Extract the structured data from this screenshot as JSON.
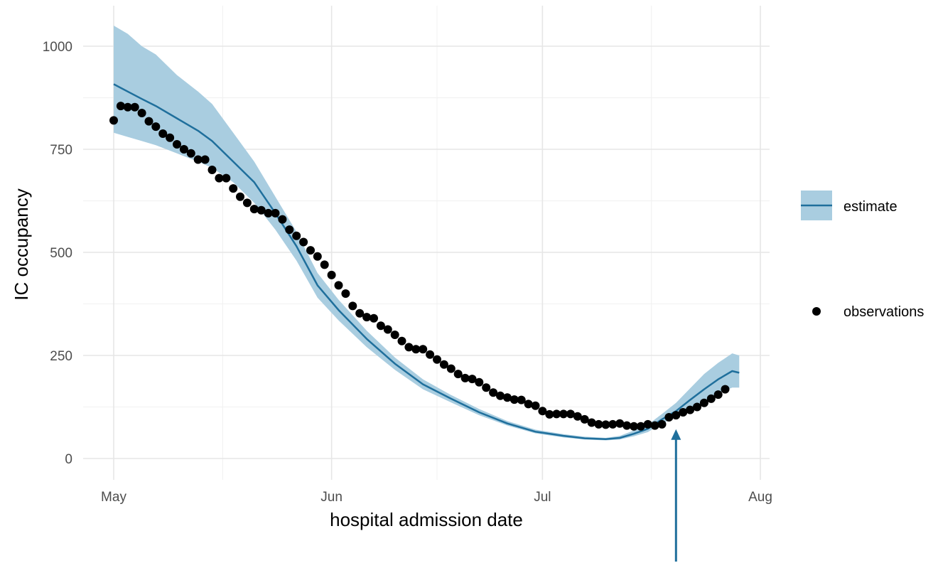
{
  "chart_data": {
    "type": "line",
    "xlabel": "hospital admission date",
    "ylabel": "IC occupancy",
    "x_axis": {
      "type": "date",
      "range": [
        "2020-05-01",
        "2020-08-01"
      ],
      "ticks": [
        {
          "date": "2020-05-01",
          "label": "May"
        },
        {
          "date": "2020-06-01",
          "label": "Jun"
        },
        {
          "date": "2020-07-01",
          "label": "Jul"
        },
        {
          "date": "2020-08-01",
          "label": "Aug"
        }
      ]
    },
    "y_axis": {
      "range": [
        0,
        1000
      ],
      "ticks": [
        0,
        250,
        500,
        750,
        1000
      ]
    },
    "grid": true,
    "legend": {
      "placement": "right",
      "entries": [
        "estimate",
        "observations"
      ]
    },
    "colors": {
      "estimate_line": "#1f6f9c",
      "estimate_band": "#a9cde0",
      "observations": "#000000",
      "annotation_arrow": "#1f6f9c",
      "grid_major": "#e6e6e6",
      "grid_minor": "#f2f2f2"
    },
    "annotation": {
      "type": "arrow",
      "points_to_date": "2020-07-20",
      "points_to_value": 85
    },
    "estimate": [
      {
        "x": "2020-05-01",
        "y": 908,
        "lo": 790,
        "hi": 1050
      },
      {
        "x": "2020-05-03",
        "y": 890,
        "lo": 780,
        "hi": 1030
      },
      {
        "x": "2020-05-05",
        "y": 872,
        "lo": 770,
        "hi": 1000
      },
      {
        "x": "2020-05-07",
        "y": 855,
        "lo": 760,
        "hi": 980
      },
      {
        "x": "2020-05-10",
        "y": 825,
        "lo": 740,
        "hi": 930
      },
      {
        "x": "2020-05-13",
        "y": 795,
        "lo": 720,
        "hi": 890
      },
      {
        "x": "2020-05-15",
        "y": 770,
        "lo": 705,
        "hi": 860
      },
      {
        "x": "2020-05-18",
        "y": 720,
        "lo": 670,
        "hi": 790
      },
      {
        "x": "2020-05-21",
        "y": 670,
        "lo": 620,
        "hi": 720
      },
      {
        "x": "2020-05-24",
        "y": 595,
        "lo": 555,
        "hi": 635
      },
      {
        "x": "2020-05-27",
        "y": 515,
        "lo": 480,
        "hi": 550
      },
      {
        "x": "2020-05-30",
        "y": 420,
        "lo": 390,
        "hi": 450
      },
      {
        "x": "2020-06-02",
        "y": 360,
        "lo": 335,
        "hi": 385
      },
      {
        "x": "2020-06-06",
        "y": 290,
        "lo": 270,
        "hi": 310
      },
      {
        "x": "2020-06-10",
        "y": 230,
        "lo": 215,
        "hi": 245
      },
      {
        "x": "2020-06-14",
        "y": 180,
        "lo": 168,
        "hi": 192
      },
      {
        "x": "2020-06-18",
        "y": 145,
        "lo": 136,
        "hi": 154
      },
      {
        "x": "2020-06-22",
        "y": 112,
        "lo": 105,
        "hi": 120
      },
      {
        "x": "2020-06-26",
        "y": 85,
        "lo": 80,
        "hi": 91
      },
      {
        "x": "2020-06-30",
        "y": 65,
        "lo": 61,
        "hi": 70
      },
      {
        "x": "2020-07-04",
        "y": 55,
        "lo": 51,
        "hi": 59
      },
      {
        "x": "2020-07-07",
        "y": 49,
        "lo": 46,
        "hi": 53
      },
      {
        "x": "2020-07-10",
        "y": 47,
        "lo": 44,
        "hi": 50
      },
      {
        "x": "2020-07-12",
        "y": 50,
        "lo": 46,
        "hi": 55
      },
      {
        "x": "2020-07-14",
        "y": 60,
        "lo": 54,
        "hi": 68
      },
      {
        "x": "2020-07-16",
        "y": 72,
        "lo": 64,
        "hi": 82
      },
      {
        "x": "2020-07-18",
        "y": 95,
        "lo": 85,
        "hi": 108
      },
      {
        "x": "2020-07-20",
        "y": 115,
        "lo": 100,
        "hi": 135
      },
      {
        "x": "2020-07-22",
        "y": 142,
        "lo": 120,
        "hi": 170
      },
      {
        "x": "2020-07-24",
        "y": 168,
        "lo": 140,
        "hi": 205
      },
      {
        "x": "2020-07-26",
        "y": 192,
        "lo": 158,
        "hi": 232
      },
      {
        "x": "2020-07-28",
        "y": 212,
        "lo": 172,
        "hi": 255
      },
      {
        "x": "2020-07-29",
        "y": 208,
        "lo": 172,
        "hi": 250
      }
    ],
    "observations": [
      {
        "x": "2020-05-01",
        "y": 820
      },
      {
        "x": "2020-05-02",
        "y": 855
      },
      {
        "x": "2020-05-03",
        "y": 852
      },
      {
        "x": "2020-05-04",
        "y": 852
      },
      {
        "x": "2020-05-05",
        "y": 838
      },
      {
        "x": "2020-05-06",
        "y": 818
      },
      {
        "x": "2020-05-07",
        "y": 805
      },
      {
        "x": "2020-05-08",
        "y": 788
      },
      {
        "x": "2020-05-09",
        "y": 778
      },
      {
        "x": "2020-05-10",
        "y": 762
      },
      {
        "x": "2020-05-11",
        "y": 750
      },
      {
        "x": "2020-05-12",
        "y": 740
      },
      {
        "x": "2020-05-13",
        "y": 725
      },
      {
        "x": "2020-05-14",
        "y": 725
      },
      {
        "x": "2020-05-15",
        "y": 700
      },
      {
        "x": "2020-05-16",
        "y": 680
      },
      {
        "x": "2020-05-17",
        "y": 680
      },
      {
        "x": "2020-05-18",
        "y": 655
      },
      {
        "x": "2020-05-19",
        "y": 635
      },
      {
        "x": "2020-05-20",
        "y": 620
      },
      {
        "x": "2020-05-21",
        "y": 605
      },
      {
        "x": "2020-05-22",
        "y": 602
      },
      {
        "x": "2020-05-23",
        "y": 595
      },
      {
        "x": "2020-05-24",
        "y": 595
      },
      {
        "x": "2020-05-25",
        "y": 580
      },
      {
        "x": "2020-05-26",
        "y": 555
      },
      {
        "x": "2020-05-27",
        "y": 540
      },
      {
        "x": "2020-05-28",
        "y": 525
      },
      {
        "x": "2020-05-29",
        "y": 505
      },
      {
        "x": "2020-05-30",
        "y": 490
      },
      {
        "x": "2020-05-31",
        "y": 470
      },
      {
        "x": "2020-06-01",
        "y": 445
      },
      {
        "x": "2020-06-02",
        "y": 420
      },
      {
        "x": "2020-06-03",
        "y": 400
      },
      {
        "x": "2020-06-04",
        "y": 370
      },
      {
        "x": "2020-06-05",
        "y": 352
      },
      {
        "x": "2020-06-06",
        "y": 343
      },
      {
        "x": "2020-06-07",
        "y": 340
      },
      {
        "x": "2020-06-08",
        "y": 322
      },
      {
        "x": "2020-06-09",
        "y": 313
      },
      {
        "x": "2020-06-10",
        "y": 300
      },
      {
        "x": "2020-06-11",
        "y": 285
      },
      {
        "x": "2020-06-12",
        "y": 270
      },
      {
        "x": "2020-06-13",
        "y": 265
      },
      {
        "x": "2020-06-14",
        "y": 265
      },
      {
        "x": "2020-06-15",
        "y": 252
      },
      {
        "x": "2020-06-16",
        "y": 240
      },
      {
        "x": "2020-06-17",
        "y": 228
      },
      {
        "x": "2020-06-18",
        "y": 218
      },
      {
        "x": "2020-06-19",
        "y": 205
      },
      {
        "x": "2020-06-20",
        "y": 195
      },
      {
        "x": "2020-06-21",
        "y": 193
      },
      {
        "x": "2020-06-22",
        "y": 185
      },
      {
        "x": "2020-06-23",
        "y": 172
      },
      {
        "x": "2020-06-24",
        "y": 160
      },
      {
        "x": "2020-06-25",
        "y": 152
      },
      {
        "x": "2020-06-26",
        "y": 148
      },
      {
        "x": "2020-06-27",
        "y": 143
      },
      {
        "x": "2020-06-28",
        "y": 142
      },
      {
        "x": "2020-06-29",
        "y": 132
      },
      {
        "x": "2020-06-30",
        "y": 128
      },
      {
        "x": "2020-07-01",
        "y": 115
      },
      {
        "x": "2020-07-02",
        "y": 107
      },
      {
        "x": "2020-07-03",
        "y": 108
      },
      {
        "x": "2020-07-04",
        "y": 108
      },
      {
        "x": "2020-07-05",
        "y": 108
      },
      {
        "x": "2020-07-06",
        "y": 102
      },
      {
        "x": "2020-07-07",
        "y": 95
      },
      {
        "x": "2020-07-08",
        "y": 87
      },
      {
        "x": "2020-07-09",
        "y": 83
      },
      {
        "x": "2020-07-10",
        "y": 82
      },
      {
        "x": "2020-07-11",
        "y": 83
      },
      {
        "x": "2020-07-12",
        "y": 85
      },
      {
        "x": "2020-07-13",
        "y": 80
      },
      {
        "x": "2020-07-14",
        "y": 78
      },
      {
        "x": "2020-07-15",
        "y": 78
      },
      {
        "x": "2020-07-16",
        "y": 83
      },
      {
        "x": "2020-07-17",
        "y": 80
      },
      {
        "x": "2020-07-18",
        "y": 83
      },
      {
        "x": "2020-07-19",
        "y": 100
      },
      {
        "x": "2020-07-20",
        "y": 105
      },
      {
        "x": "2020-07-21",
        "y": 112
      },
      {
        "x": "2020-07-22",
        "y": 118
      },
      {
        "x": "2020-07-23",
        "y": 125
      },
      {
        "x": "2020-07-24",
        "y": 135
      },
      {
        "x": "2020-07-25",
        "y": 145
      },
      {
        "x": "2020-07-26",
        "y": 155
      },
      {
        "x": "2020-07-27",
        "y": 168
      }
    ]
  }
}
